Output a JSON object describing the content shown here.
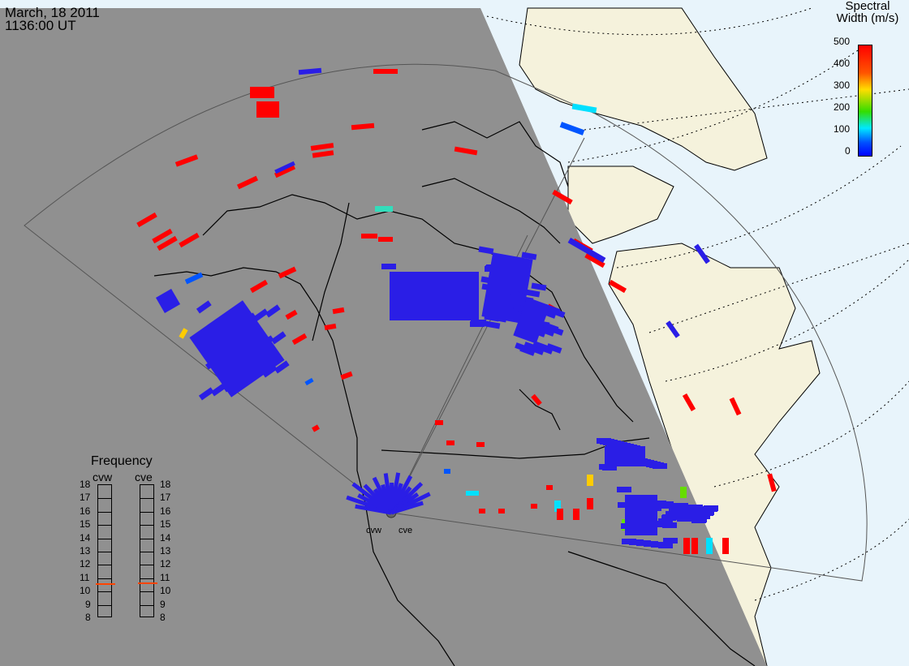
{
  "header": {
    "date": "March, 18 2011",
    "time": "1136:00 UT"
  },
  "colorbar": {
    "title_line1": "Spectral",
    "title_line2": "Width (m/s)",
    "ticks": [
      "500",
      "400",
      "300",
      "200",
      "100",
      "0"
    ],
    "colors": [
      "#ff0000",
      "#ff8800",
      "#ffff00",
      "#00dd00",
      "#00e0ff",
      "#0000ff"
    ]
  },
  "frequency_panel": {
    "title": "Frequency",
    "radars": [
      "cvw",
      "cve"
    ],
    "scale": [
      "18",
      "17",
      "16",
      "15",
      "14",
      "13",
      "12",
      "11",
      "10",
      "9",
      "8"
    ],
    "cvw_marker": 10.6,
    "cve_marker": 10.7,
    "marker_color": "#ff4400"
  },
  "radar_sites": {
    "west": "cvw",
    "east": "cve"
  },
  "colors": {
    "night": "#909090",
    "day_ocean": "#e8f4fb",
    "land_day": "#f5f2dc",
    "low_width": "#2a1ee6",
    "high_width": "#ff0000"
  }
}
